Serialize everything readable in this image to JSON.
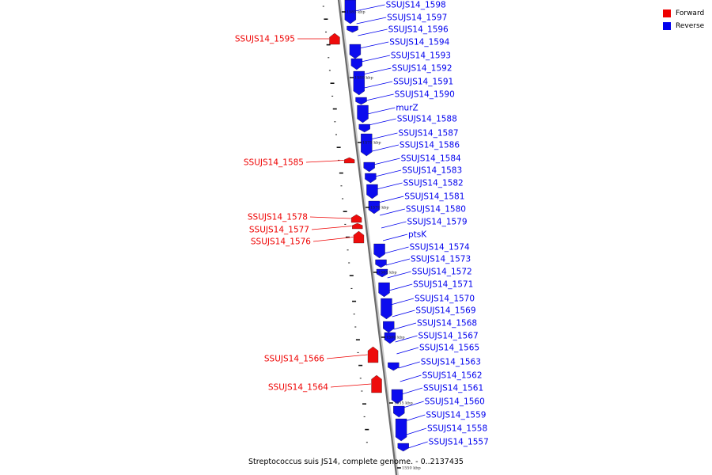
{
  "legend": {
    "forward": {
      "label": "Forward",
      "color": "#ee0000"
    },
    "reverse": {
      "label": "Reverse",
      "color": "#0000ee"
    }
  },
  "caption": "Streptococcus suis JS14, complete genome. - 0..2137435",
  "ticks": [
    "1585 kbp",
    "1580 kbp",
    "1575 kbp",
    "1570 kbp",
    "1565 kbp",
    "1560 kbp",
    "1555 kbp",
    "1550 kbp"
  ],
  "forward_genes": [
    "SSUJS14_1595",
    "SSUJS14_1585",
    "SSUJS14_1578",
    "SSUJS14_1577",
    "SSUJS14_1576",
    "SSUJS14_1566",
    "SSUJS14_1564"
  ],
  "reverse_genes": [
    "SSUJS14_1598",
    "SSUJS14_1597",
    "SSUJS14_1596",
    "SSUJS14_1594",
    "SSUJS14_1593",
    "SSUJS14_1592",
    "SSUJS14_1591",
    "SSUJS14_1590",
    "murZ",
    "SSUJS14_1588",
    "SSUJS14_1587",
    "SSUJS14_1586",
    "SSUJS14_1584",
    "SSUJS14_1583",
    "SSUJS14_1582",
    "SSUJS14_1581",
    "SSUJS14_1580",
    "SSUJS14_1579",
    "ptsK",
    "SSUJS14_1574",
    "SSUJS14_1573",
    "SSUJS14_1572",
    "SSUJS14_1571",
    "SSUJS14_1570",
    "SSUJS14_1569",
    "SSUJS14_1568",
    "SSUJS14_1567",
    "SSUJS14_1565",
    "SSUJS14_1563",
    "SSUJS14_1562",
    "SSUJS14_1561",
    "SSUJS14_1560",
    "SSUJS14_1559",
    "SSUJS14_1558",
    "SSUJS14_1557"
  ]
}
